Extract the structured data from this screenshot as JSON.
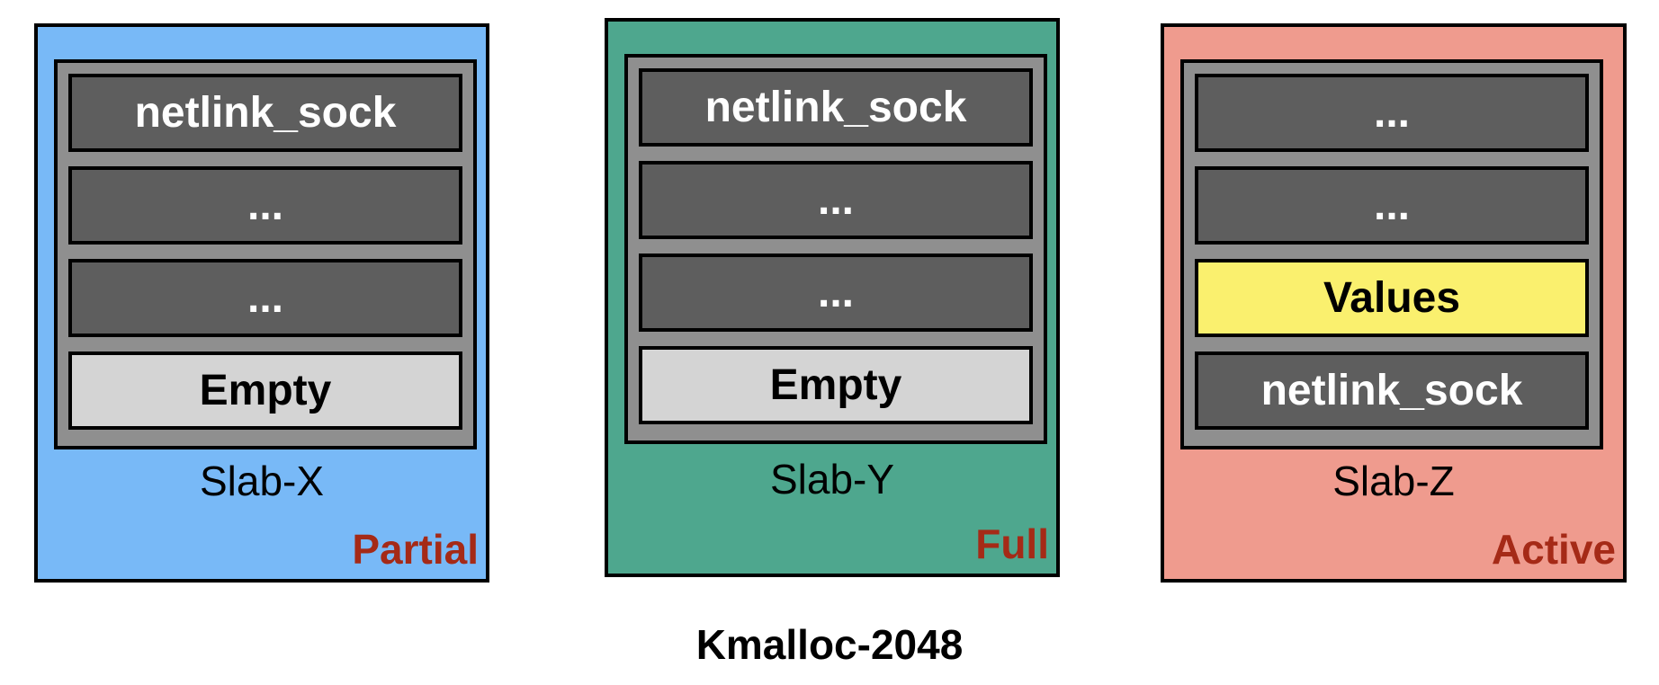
{
  "slabs": [
    {
      "label": "Slab-X",
      "state": "Partial",
      "bg": "#78b9f7",
      "objects": [
        {
          "label": "netlink_sock",
          "kind": "used"
        },
        {
          "label": "...",
          "kind": "used"
        },
        {
          "label": "...",
          "kind": "used"
        },
        {
          "label": "Empty",
          "kind": "empty"
        }
      ]
    },
    {
      "label": "Slab-Y",
      "state": "Full",
      "bg": "#4ea78e",
      "objects": [
        {
          "label": "netlink_sock",
          "kind": "used"
        },
        {
          "label": "...",
          "kind": "used"
        },
        {
          "label": "...",
          "kind": "used"
        },
        {
          "label": "Empty",
          "kind": "empty"
        }
      ]
    },
    {
      "label": "Slab-Z",
      "state": "Active",
      "bg": "#ef9b8e",
      "objects": [
        {
          "label": "...",
          "kind": "used"
        },
        {
          "label": "...",
          "kind": "used"
        },
        {
          "label": "Values",
          "kind": "values"
        },
        {
          "label": "netlink_sock",
          "kind": "used"
        }
      ]
    }
  ],
  "cache_title": "Kmalloc-2048"
}
